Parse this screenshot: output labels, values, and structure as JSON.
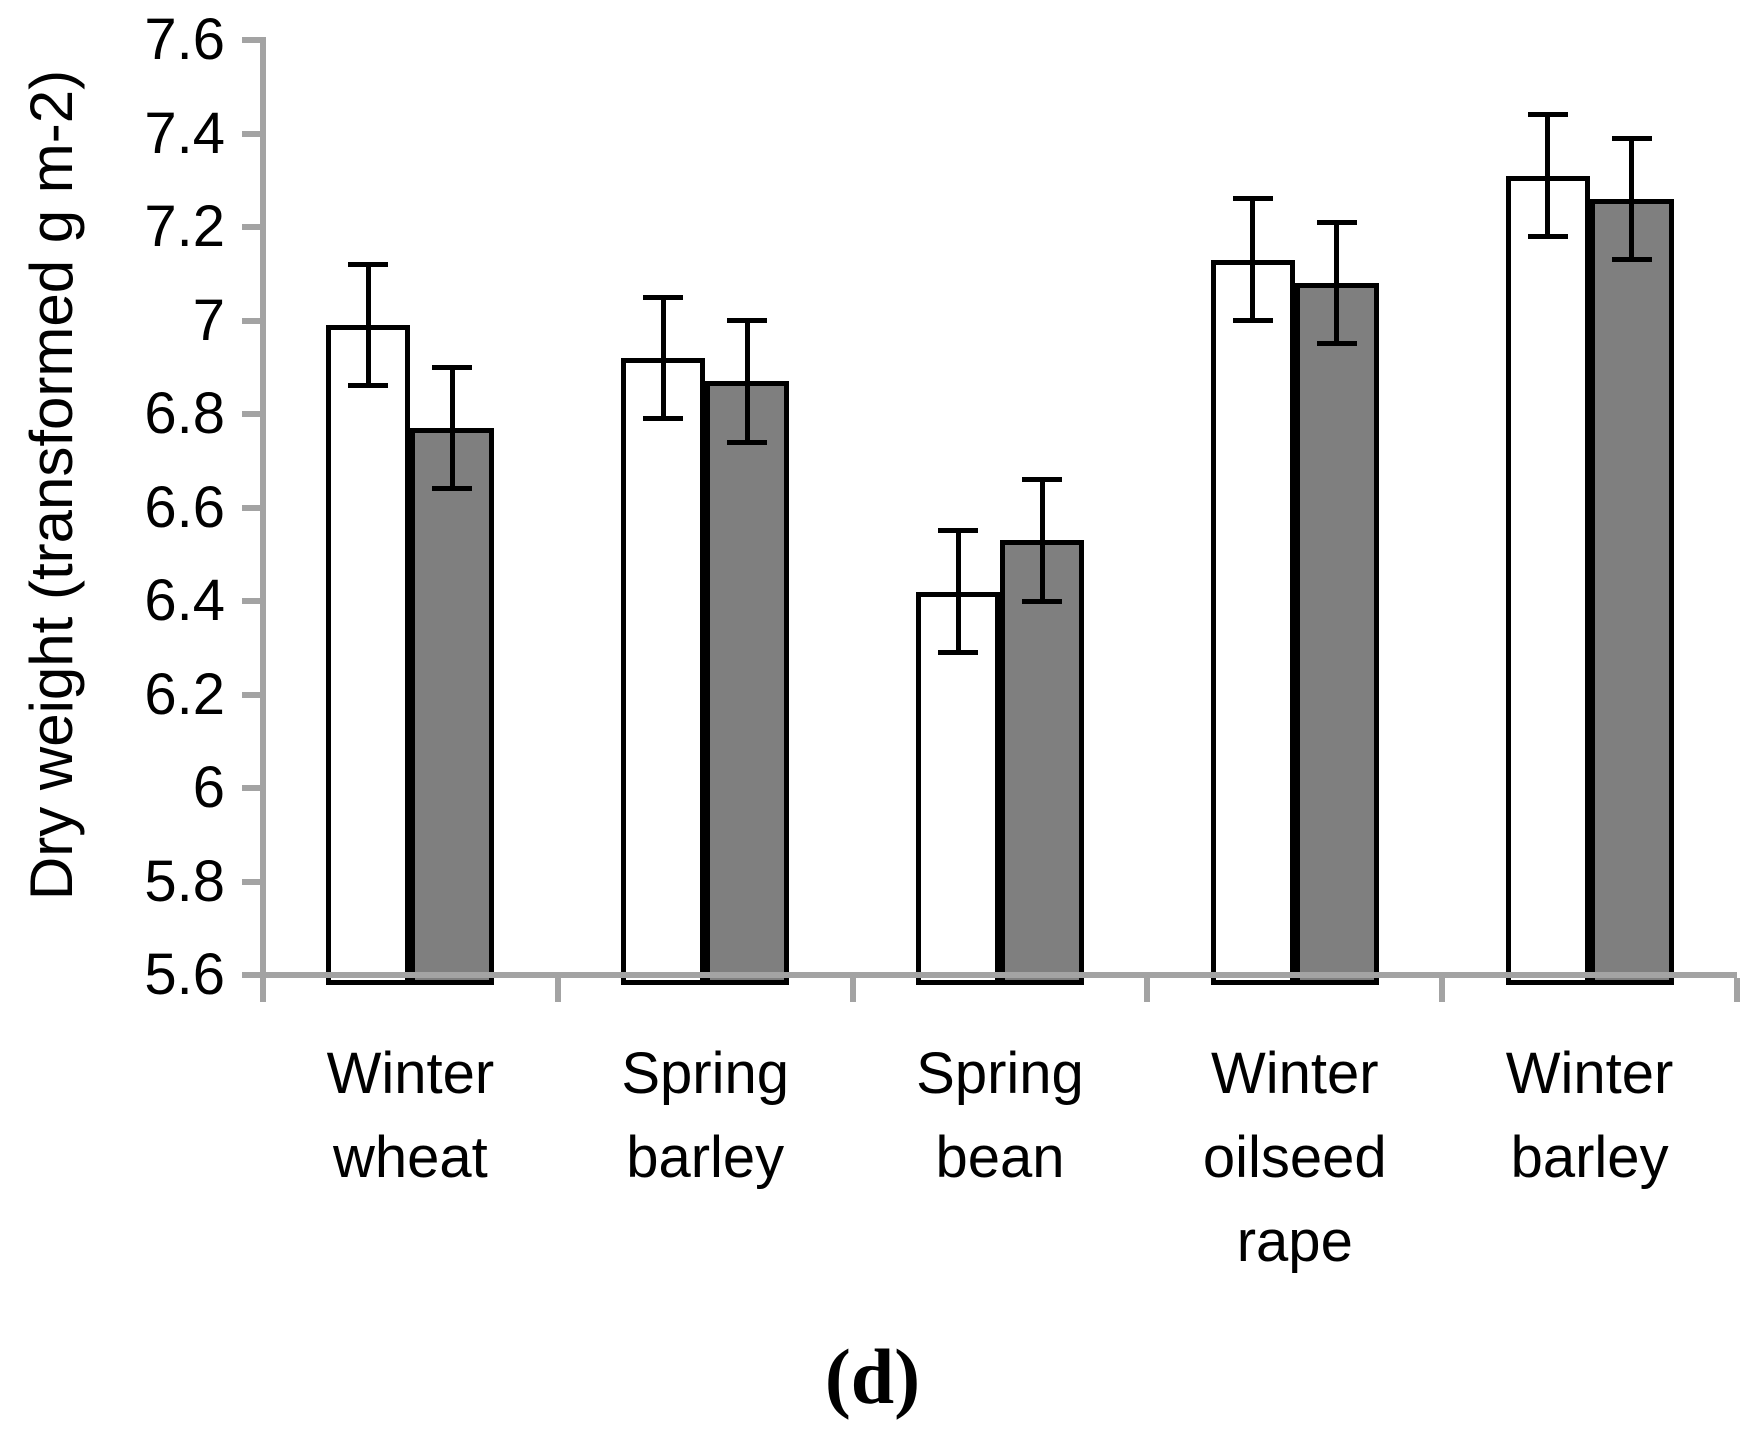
{
  "figure": {
    "caption": "(d)",
    "background": "#ffffff"
  },
  "chart_data": {
    "type": "bar",
    "title": "",
    "xlabel": "",
    "ylabel": "Dry weight (transformed g m-2)",
    "ylim": [
      5.6,
      7.6
    ],
    "ytick_values": [
      5.6,
      5.8,
      6,
      6.2,
      6.4,
      6.6,
      6.8,
      7,
      7.2,
      7.4,
      7.6
    ],
    "ytick_labels": [
      "5.6",
      "5.8",
      "6",
      "6.2",
      "6.4",
      "6.6",
      "6.8",
      "7",
      "7.2",
      "7.4",
      "7.6"
    ],
    "grid": false,
    "legend": "none",
    "error_bars": "symmetric with end caps",
    "categories": [
      {
        "label": "Winter wheat",
        "lines": [
          "Winter",
          "wheat"
        ]
      },
      {
        "label": "Spring barley",
        "lines": [
          "Spring",
          "barley"
        ]
      },
      {
        "label": "Spring bean",
        "lines": [
          "Spring",
          "bean"
        ]
      },
      {
        "label": "Winter oilseed rape",
        "lines": [
          "Winter",
          "oilseed",
          "rape"
        ]
      },
      {
        "label": "Winter barley",
        "lines": [
          "Winter",
          "barley"
        ]
      }
    ],
    "series": [
      {
        "name": "white-bars",
        "fill": "#ffffff",
        "border": "#000000",
        "values": [
          6.99,
          6.92,
          6.42,
          7.13,
          7.31
        ],
        "errors": [
          0.13,
          0.13,
          0.13,
          0.13,
          0.13
        ]
      },
      {
        "name": "grey-bars",
        "fill": "#7f7f7f",
        "border": "#000000",
        "values": [
          6.77,
          6.87,
          6.53,
          7.08,
          7.26
        ],
        "errors": [
          0.13,
          0.13,
          0.13,
          0.13,
          0.13
        ]
      }
    ],
    "colors": {
      "axis": "#a3a3a3",
      "error_bar": "#000000",
      "text": "#000000"
    }
  }
}
